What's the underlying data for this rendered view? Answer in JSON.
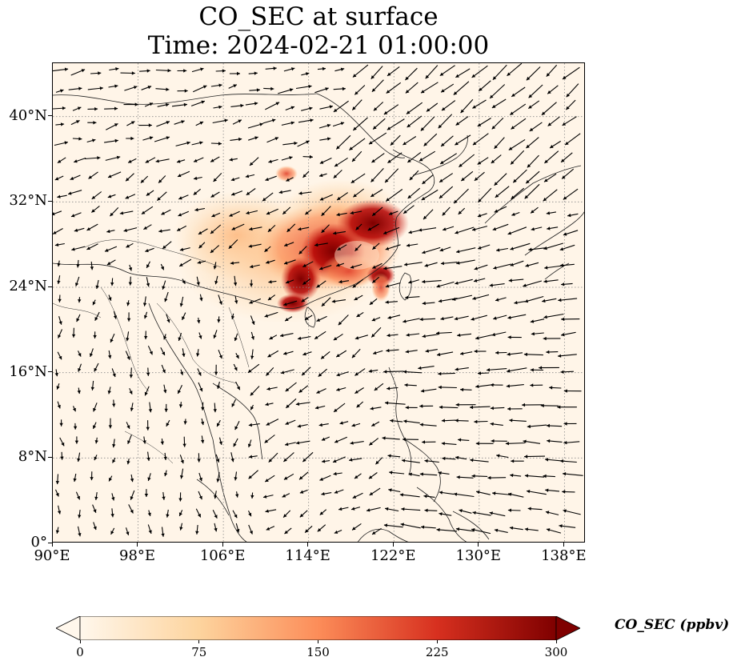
{
  "title": {
    "line1": "CO_SEC at surface",
    "line2": "Time: 2024-02-21 01:00:00"
  },
  "map": {
    "variable": "CO_SEC",
    "level": "surface",
    "lon_range": [
      90,
      140
    ],
    "lat_range": [
      0,
      45
    ],
    "x_ticks": [
      {
        "value": 90,
        "label": "90°E"
      },
      {
        "value": 98,
        "label": "98°E"
      },
      {
        "value": 106,
        "label": "106°E"
      },
      {
        "value": 114,
        "label": "114°E"
      },
      {
        "value": 122,
        "label": "122°E"
      },
      {
        "value": 130,
        "label": "130°E"
      },
      {
        "value": 138,
        "label": "138°E"
      }
    ],
    "y_ticks": [
      {
        "value": 0,
        "label": "0°"
      },
      {
        "value": 8,
        "label": "8°N"
      },
      {
        "value": 16,
        "label": "16°N"
      },
      {
        "value": 24,
        "label": "24°N"
      },
      {
        "value": 32,
        "label": "32°N"
      },
      {
        "value": 40,
        "label": "40°N"
      }
    ],
    "gridlines": "dotted",
    "features": [
      "coastlines",
      "country borders",
      "wind vectors"
    ]
  },
  "colorbar": {
    "label": "CO_SEC (ppbv)",
    "min": 0,
    "max": 300,
    "extend": "both",
    "colormap": "OrRd",
    "ticks": [
      {
        "value": 0,
        "label": "0"
      },
      {
        "value": 75,
        "label": "75"
      },
      {
        "value": 150,
        "label": "150"
      },
      {
        "value": 225,
        "label": "225"
      },
      {
        "value": 300,
        "label": "300"
      }
    ],
    "colors": [
      "#fff7ec",
      "#fdd49e",
      "#fc8d59",
      "#d7301f",
      "#7f0000"
    ]
  }
}
